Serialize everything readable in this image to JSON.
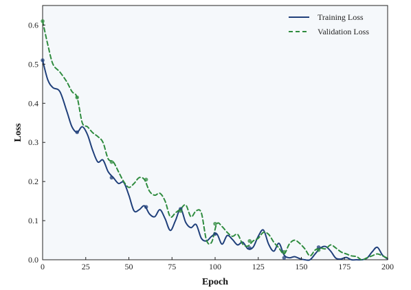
{
  "chart_data": {
    "type": "line",
    "title": "",
    "xlabel": "Epoch",
    "ylabel": "Loss",
    "xlim": [
      0,
      200
    ],
    "ylim": [
      0,
      0.65
    ],
    "xticks": [
      0,
      25,
      50,
      75,
      100,
      125,
      150,
      175,
      200
    ],
    "yticks": [
      0.0,
      0.1,
      0.2,
      0.3,
      0.4,
      0.5,
      0.6
    ],
    "grid": false,
    "legend": "top-right",
    "series": [
      {
        "name": "Training Loss",
        "color": "#1f3f7a",
        "style": "solid",
        "x": [
          0,
          3,
          6,
          10,
          14,
          17,
          20,
          23,
          26,
          29,
          32,
          35,
          38,
          41,
          44,
          47,
          50,
          53,
          56,
          59,
          62,
          65,
          68,
          71,
          74,
          77,
          80,
          83,
          86,
          89,
          92,
          95,
          98,
          101,
          104,
          107,
          110,
          113,
          116,
          119,
          122,
          125,
          128,
          131,
          134,
          137,
          140,
          143,
          146,
          149,
          152,
          155,
          158,
          161,
          164,
          167,
          170,
          173,
          176,
          179,
          182,
          185,
          188,
          191,
          194,
          197,
          200
        ],
        "y": [
          0.51,
          0.46,
          0.44,
          0.43,
          0.38,
          0.34,
          0.326,
          0.34,
          0.32,
          0.28,
          0.25,
          0.255,
          0.225,
          0.21,
          0.195,
          0.198,
          0.165,
          0.125,
          0.128,
          0.138,
          0.117,
          0.11,
          0.128,
          0.105,
          0.075,
          0.1,
          0.13,
          0.095,
          0.082,
          0.09,
          0.055,
          0.048,
          0.06,
          0.066,
          0.04,
          0.062,
          0.052,
          0.038,
          0.045,
          0.028,
          0.032,
          0.06,
          0.076,
          0.04,
          0.022,
          0.042,
          0.012,
          0.005,
          0.008,
          0.003,
          0.0,
          0.0,
          0.015,
          0.03,
          0.034,
          0.022,
          0.004,
          0.002,
          0.006,
          0.0,
          0.0,
          0.0,
          0.004,
          0.02,
          0.032,
          0.012,
          0.002
        ]
      },
      {
        "name": "Validation Loss",
        "color": "#2e8b3e",
        "style": "dashed",
        "x": [
          0,
          3,
          6,
          10,
          14,
          17,
          20,
          23,
          26,
          29,
          32,
          35,
          38,
          41,
          44,
          47,
          50,
          53,
          56,
          59,
          62,
          65,
          68,
          71,
          74,
          77,
          80,
          83,
          86,
          89,
          92,
          95,
          98,
          101,
          104,
          107,
          110,
          113,
          116,
          119,
          122,
          125,
          128,
          131,
          134,
          137,
          140,
          143,
          146,
          149,
          152,
          155,
          158,
          161,
          164,
          167,
          170,
          173,
          176,
          179,
          182,
          185,
          188,
          191,
          194,
          197,
          200
        ],
        "y": [
          0.61,
          0.55,
          0.5,
          0.48,
          0.455,
          0.43,
          0.415,
          0.35,
          0.34,
          0.325,
          0.315,
          0.3,
          0.258,
          0.25,
          0.225,
          0.2,
          0.185,
          0.195,
          0.21,
          0.205,
          0.175,
          0.165,
          0.17,
          0.15,
          0.11,
          0.12,
          0.13,
          0.14,
          0.11,
          0.125,
          0.12,
          0.05,
          0.045,
          0.092,
          0.085,
          0.07,
          0.06,
          0.065,
          0.04,
          0.035,
          0.048,
          0.055,
          0.07,
          0.065,
          0.045,
          0.03,
          0.015,
          0.04,
          0.05,
          0.042,
          0.028,
          0.01,
          0.025,
          0.03,
          0.028,
          0.038,
          0.03,
          0.02,
          0.015,
          0.01,
          0.008,
          0.0,
          0.005,
          0.01,
          0.015,
          0.01,
          0.004
        ]
      }
    ],
    "markers": [
      {
        "series": 0,
        "x": [
          0,
          20,
          40,
          60,
          80,
          100,
          120,
          140,
          160
        ],
        "y": [
          0.51,
          0.326,
          0.21,
          0.135,
          0.13,
          0.066,
          0.03,
          0.005,
          0.032
        ]
      },
      {
        "series": 1,
        "x": [
          0,
          20,
          40,
          60,
          80,
          100,
          120,
          140,
          160
        ],
        "y": [
          0.61,
          0.415,
          0.25,
          0.205,
          0.125,
          0.092,
          0.048,
          0.02,
          0.025
        ]
      }
    ]
  }
}
